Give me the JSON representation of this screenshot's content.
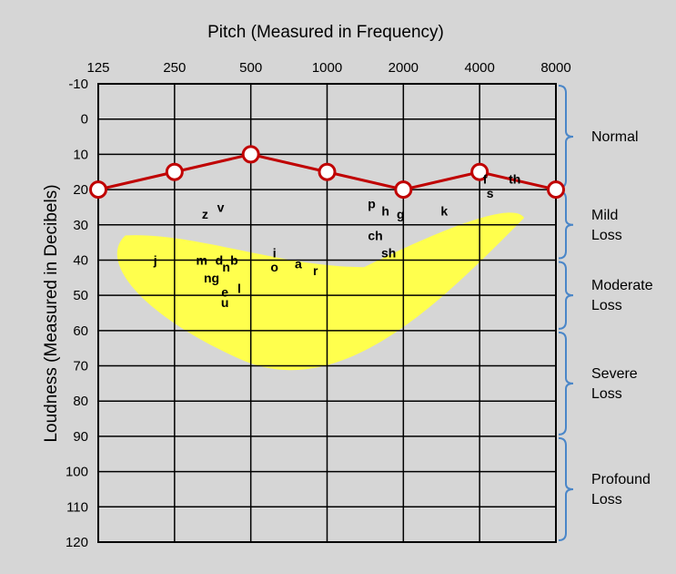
{
  "chart_data": {
    "type": "line",
    "title": "Pitch (Measured in Frequency)",
    "xlabel": "",
    "ylabel": "Loudness (Measured in Decibels)",
    "x_ticks": [
      "125",
      "250",
      "500",
      "1000",
      "2000",
      "4000",
      "8000"
    ],
    "y_ticks": [
      "-10",
      "0",
      "10",
      "20",
      "30",
      "40",
      "50",
      "60",
      "70",
      "80",
      "90",
      "100",
      "110",
      "120"
    ],
    "ylim": [
      -10,
      120
    ],
    "y_inverted": true,
    "x_scale": "log2",
    "grid": true,
    "series": [
      {
        "color": "#c00000",
        "points": [
          {
            "x": 125,
            "y": 20
          },
          {
            "x": 250,
            "y": 15
          },
          {
            "x": 500,
            "y": 10
          },
          {
            "x": 1000,
            "y": 15
          },
          {
            "x": 2000,
            "y": 20
          },
          {
            "x": 4000,
            "y": 15
          },
          {
            "x": 8000,
            "y": 20
          }
        ]
      }
    ],
    "speech_banana_color": "#ffff4d",
    "speech_sounds": [
      {
        "label": "z",
        "x": 330,
        "y": 27
      },
      {
        "label": "v",
        "x": 380,
        "y": 25
      },
      {
        "label": "j",
        "x": 210,
        "y": 40
      },
      {
        "label": "m",
        "x": 320,
        "y": 40
      },
      {
        "label": "d",
        "x": 375,
        "y": 40
      },
      {
        "label": "b",
        "x": 430,
        "y": 40
      },
      {
        "label": "n",
        "x": 400,
        "y": 42
      },
      {
        "label": "ng",
        "x": 350,
        "y": 45
      },
      {
        "label": "e",
        "x": 395,
        "y": 49
      },
      {
        "label": "l",
        "x": 450,
        "y": 48
      },
      {
        "label": "u",
        "x": 395,
        "y": 52
      },
      {
        "label": "i",
        "x": 620,
        "y": 38
      },
      {
        "label": "o",
        "x": 620,
        "y": 42
      },
      {
        "label": "a",
        "x": 770,
        "y": 41
      },
      {
        "label": "r",
        "x": 900,
        "y": 43
      },
      {
        "label": "p",
        "x": 1500,
        "y": 24
      },
      {
        "label": "h",
        "x": 1700,
        "y": 26
      },
      {
        "label": "g",
        "x": 1950,
        "y": 27
      },
      {
        "label": "ch",
        "x": 1550,
        "y": 33
      },
      {
        "label": "sh",
        "x": 1750,
        "y": 38
      },
      {
        "label": "k",
        "x": 2900,
        "y": 26
      },
      {
        "label": "f",
        "x": 4200,
        "y": 17
      },
      {
        "label": "s",
        "x": 4400,
        "y": 21
      },
      {
        "label": "th",
        "x": 5500,
        "y": 17
      }
    ],
    "hearing_loss_ranges": [
      {
        "label": [
          "Normal"
        ],
        "from": -10,
        "to": 20
      },
      {
        "label": [
          "Mild",
          "Loss"
        ],
        "from": 20,
        "to": 40
      },
      {
        "label": [
          "Moderate",
          "Loss"
        ],
        "from": 40,
        "to": 60
      },
      {
        "label": [
          "Severe",
          "Loss"
        ],
        "from": 60,
        "to": 90
      },
      {
        "label": [
          "Profound",
          "Loss"
        ],
        "from": 90,
        "to": 120
      }
    ],
    "bracket_color": "#4a86c8"
  }
}
